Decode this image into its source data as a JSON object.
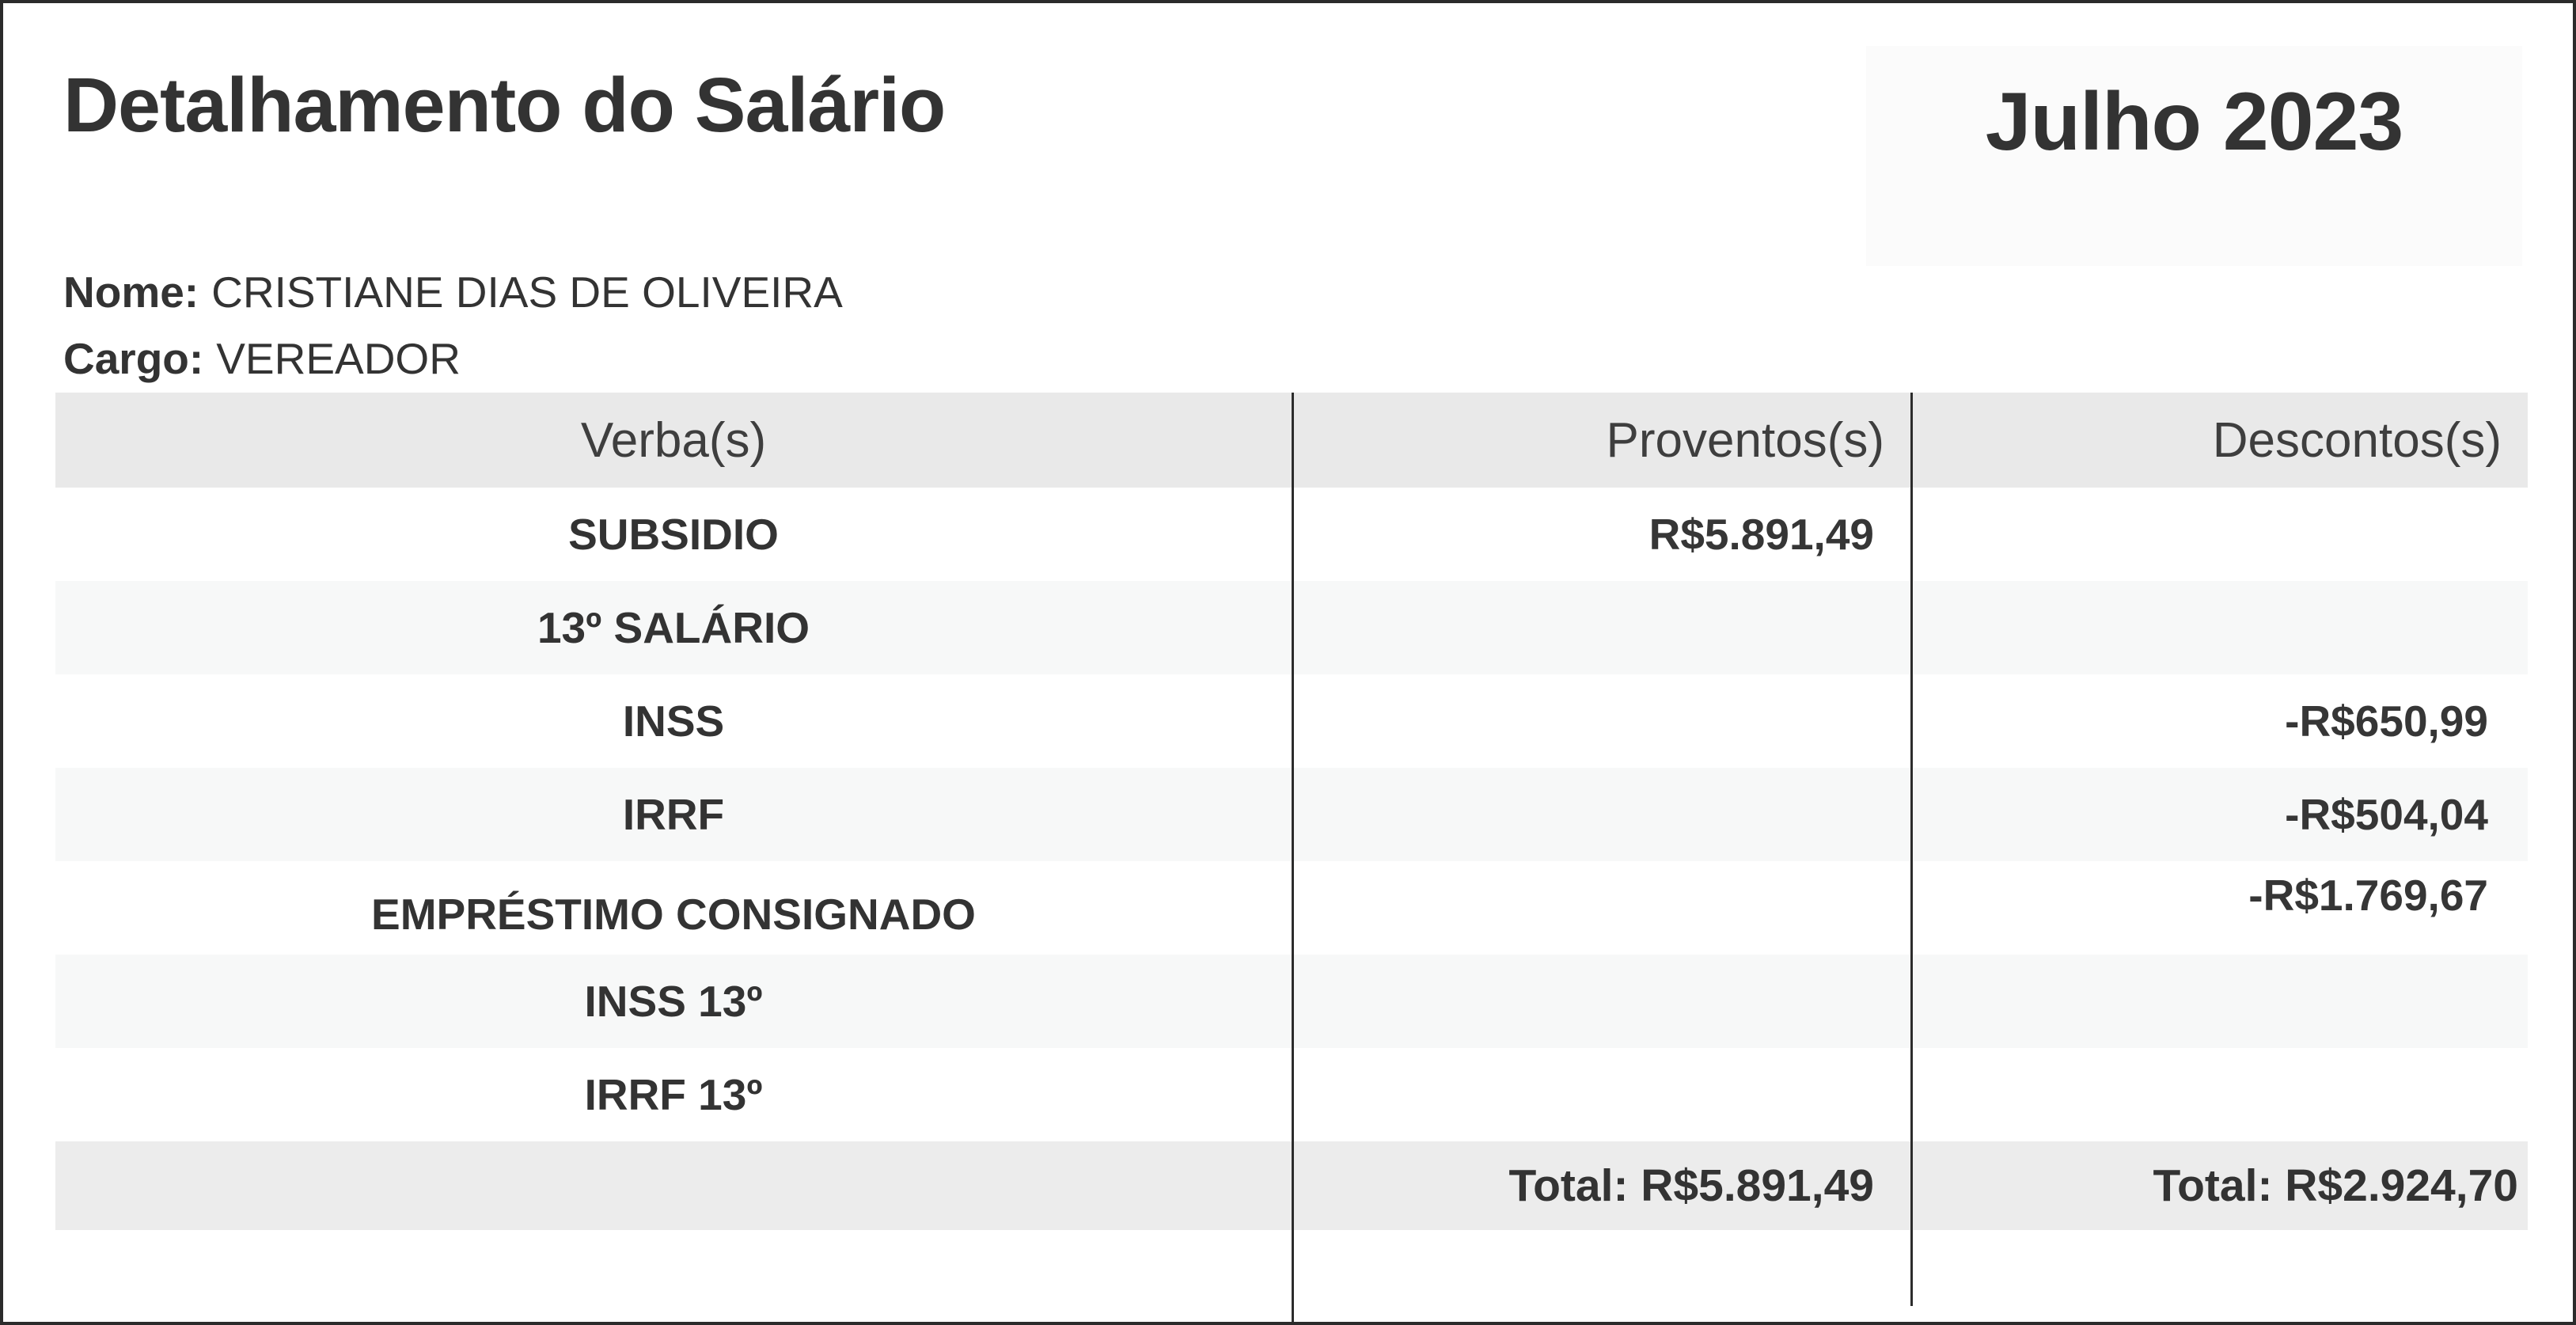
{
  "page": {
    "title": "Detalhamento do Salário",
    "period": "Julho 2023",
    "name_label": "Nome:",
    "name_value": "CRISTIANE DIAS DE OLIVEIRA",
    "role_label": "Cargo:",
    "role_value": "VEREADOR"
  },
  "table": {
    "columns": [
      "Verba(s)",
      "Proventos(s)",
      "Descontos(s)"
    ],
    "rows": [
      {
        "verba": "SUBSIDIO",
        "provento": "R$5.891,49",
        "desconto": ""
      },
      {
        "verba": "13º SALÁRIO",
        "provento": "",
        "desconto": ""
      },
      {
        "verba": "INSS",
        "provento": "",
        "desconto": "-R$650,99"
      },
      {
        "verba": "IRRF",
        "provento": "",
        "desconto": "-R$504,04"
      },
      {
        "verba": "EMPRÉSTIMO CONSIGNADO",
        "provento": "",
        "desconto": "-R$1.769,67"
      },
      {
        "verba": "INSS 13º",
        "provento": "",
        "desconto": ""
      },
      {
        "verba": "IRRF 13º",
        "provento": "",
        "desconto": ""
      }
    ],
    "totals": {
      "proventos": "Total: R$5.891,49",
      "descontos": "Total: R$2.924,70"
    }
  },
  "colors": {
    "page_border": "#2b2b2b",
    "header_bg": "#e9e9e9",
    "stripe_bg": "#f7f8f8",
    "total_bg": "#ececec",
    "period_box_bg": "#fbfbfb",
    "text": "#333333",
    "divider": "#2c2c2c"
  }
}
